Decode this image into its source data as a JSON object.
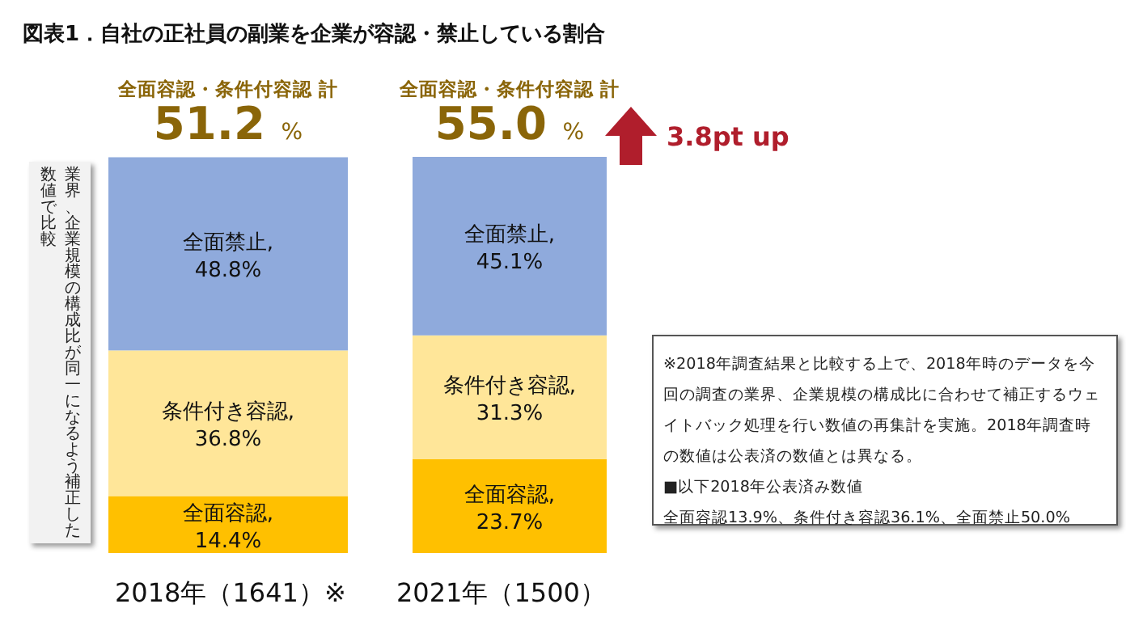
{
  "chart_data": {
    "type": "bar",
    "title": "図表1．自社の正社員の副業を企業が容認・禁止している割合",
    "categories": [
      "2018年（1641）※",
      "2021年（1500）"
    ],
    "series": [
      {
        "name": "全面容認,",
        "color": "#ffc000",
        "values": [
          14.4,
          23.7
        ],
        "value_labels": [
          "14.4%",
          "23.7%"
        ]
      },
      {
        "name": "条件付き容認,",
        "color": "#ffe699",
        "values": [
          36.8,
          31.3
        ],
        "value_labels": [
          "36.8%",
          "31.3%"
        ]
      },
      {
        "name": "全面禁止,",
        "color": "#8faadc",
        "values": [
          48.8,
          45.1
        ],
        "value_labels": [
          "48.8%",
          "45.1%"
        ]
      }
    ],
    "annotations": [
      "業界、企業規模の構成比が同一になるよう補正した",
      "数値で比較",
      "全面容認・条件付容認 計",
      "51.2 %",
      "全面容認・条件付容認 計",
      "55.0 %",
      "3.8pt up",
      "※2018年調査結果と比較する上で、2018年時のデータを今回の調査の業界、企業規模の構成比に合わせて補正するウェイトバック処理を行い数値の再集計を実施。2018年調査時の数値は公表済の数値とは異なる。",
      "■以下2018年公表済み数値",
      "全面容認13.9%、条件付き容認36.1%、全面禁止50.0%"
    ],
    "stacked": true
  }
}
